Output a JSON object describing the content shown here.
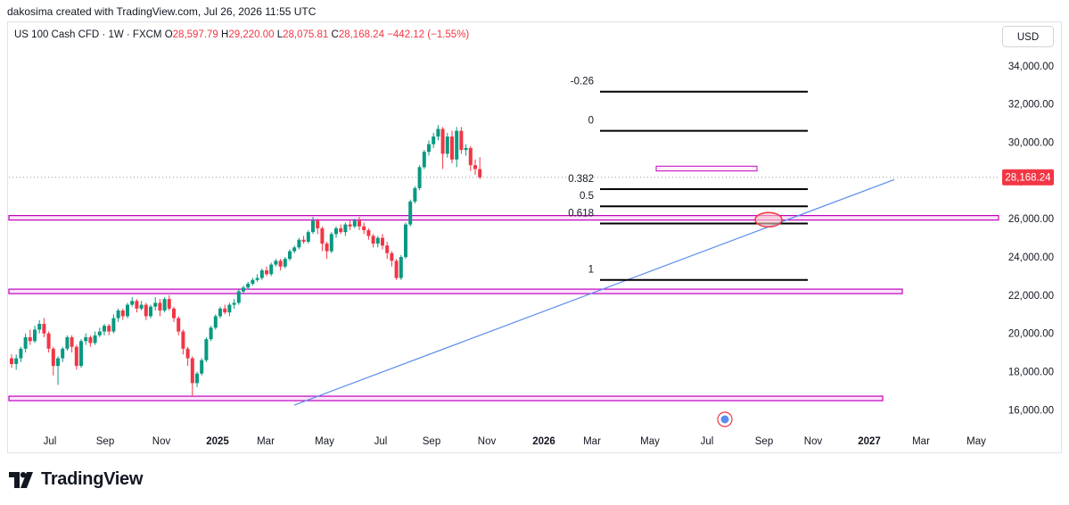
{
  "header": {
    "credit": "dakosima created with TradingView.com, Jul 26, 2026 11:55 UTC"
  },
  "legend": {
    "symbol": "US 100 Cash CFD · 1W · FXCM",
    "open_label": "O",
    "open": "28,597.79",
    "high_label": "H",
    "high": "29,220.00",
    "low_label": "L",
    "low": "28,075.81",
    "close_label": "C",
    "close": "28,168.24",
    "change": "−442.12 (−1.55%)"
  },
  "currency_button": "USD",
  "colors": {
    "up": "#089981",
    "down": "#f23645",
    "trendline": "#5b8def",
    "zone": "#c000c0",
    "fib": "#000000"
  },
  "brand": {
    "name": "TradingView",
    "icon": "tradingview-logo-icon"
  },
  "chart_data": {
    "type": "candlestick",
    "timeframe": "1W",
    "ylim": [
      15000,
      35500
    ],
    "y_ticks": [
      16000,
      18000,
      20000,
      22000,
      24000,
      26000,
      28000,
      30000,
      32000,
      34000
    ],
    "y_tick_labels": [
      "16,000.00",
      "18,000.00",
      "20,000.00",
      "22,000.00",
      "24,000.00",
      "26,000.00",
      "28,000.00",
      "30,000.00",
      "32,000.00",
      "34,000.00"
    ],
    "x_tick_labels": [
      "Jul",
      "Sep",
      "Nov",
      "2025",
      "Mar",
      "May",
      "Jul",
      "Sep",
      "Nov",
      "2026",
      "Mar",
      "May",
      "Jul",
      "Sep",
      "Nov",
      "2027",
      "Mar",
      "May"
    ],
    "last_price_label": "28,168.24",
    "last_price": 28168.24,
    "candles": [
      [
        18700,
        18400,
        18900,
        18200
      ],
      [
        18400,
        18700,
        18900,
        18100
      ],
      [
        18700,
        19200,
        19300,
        18500
      ],
      [
        19200,
        19800,
        20000,
        19000
      ],
      [
        19800,
        19600,
        20200,
        19400
      ],
      [
        19600,
        20200,
        20400,
        19500
      ],
      [
        20200,
        20500,
        20700,
        20000
      ],
      [
        20500,
        20000,
        20800,
        19800
      ],
      [
        20000,
        19200,
        20100,
        19000
      ],
      [
        19200,
        18300,
        19300,
        17800
      ],
      [
        18300,
        18700,
        18800,
        17300
      ],
      [
        18700,
        19200,
        19300,
        18500
      ],
      [
        19200,
        19800,
        19900,
        19100
      ],
      [
        19800,
        19300,
        19900,
        19000
      ],
      [
        19300,
        18300,
        19400,
        18100
      ],
      [
        18300,
        19600,
        19700,
        18200
      ],
      [
        19600,
        19800,
        20000,
        19400
      ],
      [
        19800,
        19500,
        19900,
        19300
      ],
      [
        19500,
        19900,
        20100,
        19400
      ],
      [
        19900,
        20100,
        20300,
        19800
      ],
      [
        20100,
        20400,
        20500,
        19900
      ],
      [
        20400,
        20100,
        20500,
        19900
      ],
      [
        20100,
        20800,
        21000,
        20000
      ],
      [
        20800,
        21200,
        21300,
        20600
      ],
      [
        21200,
        20900,
        21300,
        20700
      ],
      [
        20900,
        21500,
        21600,
        20800
      ],
      [
        21500,
        21700,
        21900,
        21400
      ],
      [
        21700,
        21300,
        21800,
        21100
      ],
      [
        21300,
        21500,
        21700,
        21200
      ],
      [
        21500,
        20900,
        21600,
        20700
      ],
      [
        20900,
        21400,
        21500,
        20800
      ],
      [
        21400,
        21600,
        21900,
        21200
      ],
      [
        21600,
        21200,
        21800,
        20900
      ],
      [
        21200,
        21800,
        21900,
        21100
      ],
      [
        21800,
        21300,
        22000,
        21200
      ],
      [
        21300,
        20800,
        21400,
        20600
      ],
      [
        20800,
        20100,
        20900,
        19900
      ],
      [
        20100,
        19200,
        20200,
        18900
      ],
      [
        19200,
        18700,
        19300,
        18300
      ],
      [
        18700,
        17400,
        18800,
        16700
      ],
      [
        17400,
        17900,
        18000,
        17200
      ],
      [
        17900,
        18600,
        18700,
        17800
      ],
      [
        18600,
        19700,
        19800,
        18500
      ],
      [
        19700,
        20300,
        20400,
        19600
      ],
      [
        20300,
        20900,
        21000,
        20200
      ],
      [
        20900,
        21300,
        21400,
        20800
      ],
      [
        21300,
        21100,
        21500,
        21000
      ],
      [
        21100,
        21500,
        21600,
        20900
      ],
      [
        21500,
        21600,
        21800,
        21300
      ],
      [
        21600,
        22200,
        22300,
        21500
      ],
      [
        22200,
        22400,
        22500,
        22100
      ],
      [
        22400,
        22600,
        22700,
        22300
      ],
      [
        22600,
        22800,
        22900,
        22500
      ],
      [
        22800,
        22900,
        23100,
        22700
      ],
      [
        22900,
        23300,
        23400,
        22800
      ],
      [
        23300,
        23100,
        23500,
        23000
      ],
      [
        23100,
        23600,
        23700,
        23000
      ],
      [
        23600,
        23800,
        23900,
        23500
      ],
      [
        23800,
        23500,
        23900,
        23300
      ],
      [
        23500,
        23900,
        24000,
        23400
      ],
      [
        23900,
        24300,
        24400,
        23800
      ],
      [
        24300,
        24500,
        24600,
        24200
      ],
      [
        24500,
        24900,
        25000,
        24400
      ],
      [
        24900,
        24800,
        25100,
        24700
      ],
      [
        24800,
        25300,
        25400,
        24700
      ],
      [
        25300,
        25900,
        26100,
        25200
      ],
      [
        25900,
        25500,
        26000,
        25200
      ],
      [
        25500,
        24700,
        25600,
        24300
      ],
      [
        24700,
        24300,
        24800,
        23900
      ],
      [
        24300,
        25200,
        25300,
        24200
      ],
      [
        25200,
        25500,
        25600,
        25000
      ],
      [
        25500,
        25300,
        25700,
        25200
      ],
      [
        25300,
        25700,
        25800,
        25100
      ],
      [
        25700,
        25600,
        25900,
        25400
      ],
      [
        25600,
        25900,
        26000,
        25500
      ],
      [
        25900,
        25600,
        26100,
        25400
      ],
      [
        25600,
        25400,
        25800,
        25200
      ],
      [
        25400,
        25100,
        25500,
        24900
      ],
      [
        25100,
        24700,
        25200,
        24500
      ],
      [
        24700,
        25000,
        25100,
        24500
      ],
      [
        25000,
        24600,
        25200,
        24400
      ],
      [
        24600,
        24200,
        24800,
        23900
      ],
      [
        24200,
        23800,
        24300,
        23500
      ],
      [
        23800,
        22900,
        23900,
        22800
      ],
      [
        22900,
        24000,
        24100,
        22800
      ],
      [
        24000,
        25700,
        25800,
        23900
      ],
      [
        25700,
        26900,
        27000,
        25600
      ],
      [
        26900,
        27600,
        27700,
        26800
      ],
      [
        27600,
        28700,
        28800,
        27500
      ],
      [
        28700,
        29500,
        29600,
        28600
      ],
      [
        29500,
        29900,
        30100,
        29300
      ],
      [
        29900,
        30300,
        30500,
        29700
      ],
      [
        30300,
        30700,
        30900,
        30100
      ],
      [
        30700,
        29400,
        30800,
        28600
      ],
      [
        29400,
        30300,
        30500,
        29200
      ],
      [
        30300,
        29100,
        30600,
        28900
      ],
      [
        29100,
        30600,
        30800,
        28700
      ],
      [
        30600,
        29600,
        30800,
        29400
      ],
      [
        29600,
        29700,
        29900,
        29300
      ],
      [
        29700,
        28800,
        29800,
        28500
      ],
      [
        28800,
        28600,
        29100,
        28300
      ],
      [
        28597.79,
        28168.24,
        29220.0,
        28075.81
      ]
    ],
    "fib_levels": [
      {
        "label": "-0.26",
        "price": 32650
      },
      {
        "label": "0",
        "price": 30600
      },
      {
        "label": "0.382",
        "price": 27550
      },
      {
        "label": "0.5",
        "price": 26650
      },
      {
        "label": "0.618",
        "price": 25750
      },
      {
        "label": "1",
        "price": 22800
      }
    ],
    "support_zones": [
      26050,
      22200,
      16600
    ],
    "current_zone": [
      28750,
      28500
    ]
  }
}
